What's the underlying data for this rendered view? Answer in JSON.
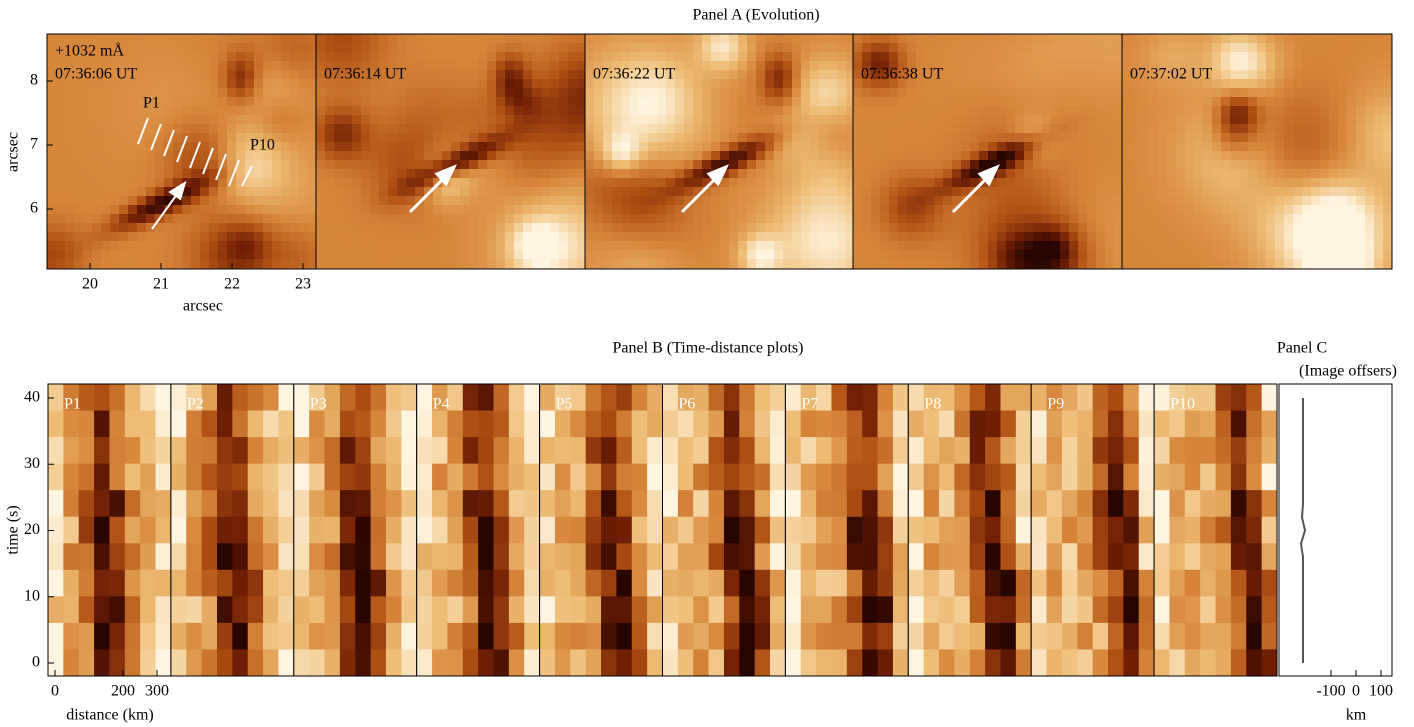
{
  "panel_a": {
    "title": "Panel A (Evolution)",
    "wavelength": "+1032 mÅ",
    "frames": [
      "07:36:06 UT",
      "07:36:14 UT",
      "07:36:22 UT",
      "07:36:38 UT",
      "07:37:02 UT"
    ],
    "slit_first": "P1",
    "slit_last": "P10",
    "xlabel": "arcsec",
    "ylabel": "arcsec",
    "xticks": [
      20,
      21,
      22,
      23
    ],
    "yticks": [
      6,
      7,
      8
    ]
  },
  "panel_b": {
    "title": "Panel B (Time-distance plots)",
    "slits": [
      "P1",
      "P2",
      "P3",
      "P4",
      "P5",
      "P6",
      "P7",
      "P8",
      "P9",
      "P10"
    ],
    "xlabel": "distance (km)",
    "ylabel": "time (s)",
    "xticks": [
      0,
      200,
      300
    ],
    "yticks": [
      0,
      10,
      20,
      30,
      40
    ]
  },
  "panel_c": {
    "title": "Panel C",
    "subtitle": "(Image offsers)",
    "xlabel": "km",
    "xticks": [
      -100,
      0,
      100
    ],
    "time": [
      0,
      16,
      18,
      20,
      22,
      24,
      40
    ],
    "offset": [
      -210,
      -210,
      -214,
      -206,
      -212,
      -210,
      -210
    ]
  }
}
